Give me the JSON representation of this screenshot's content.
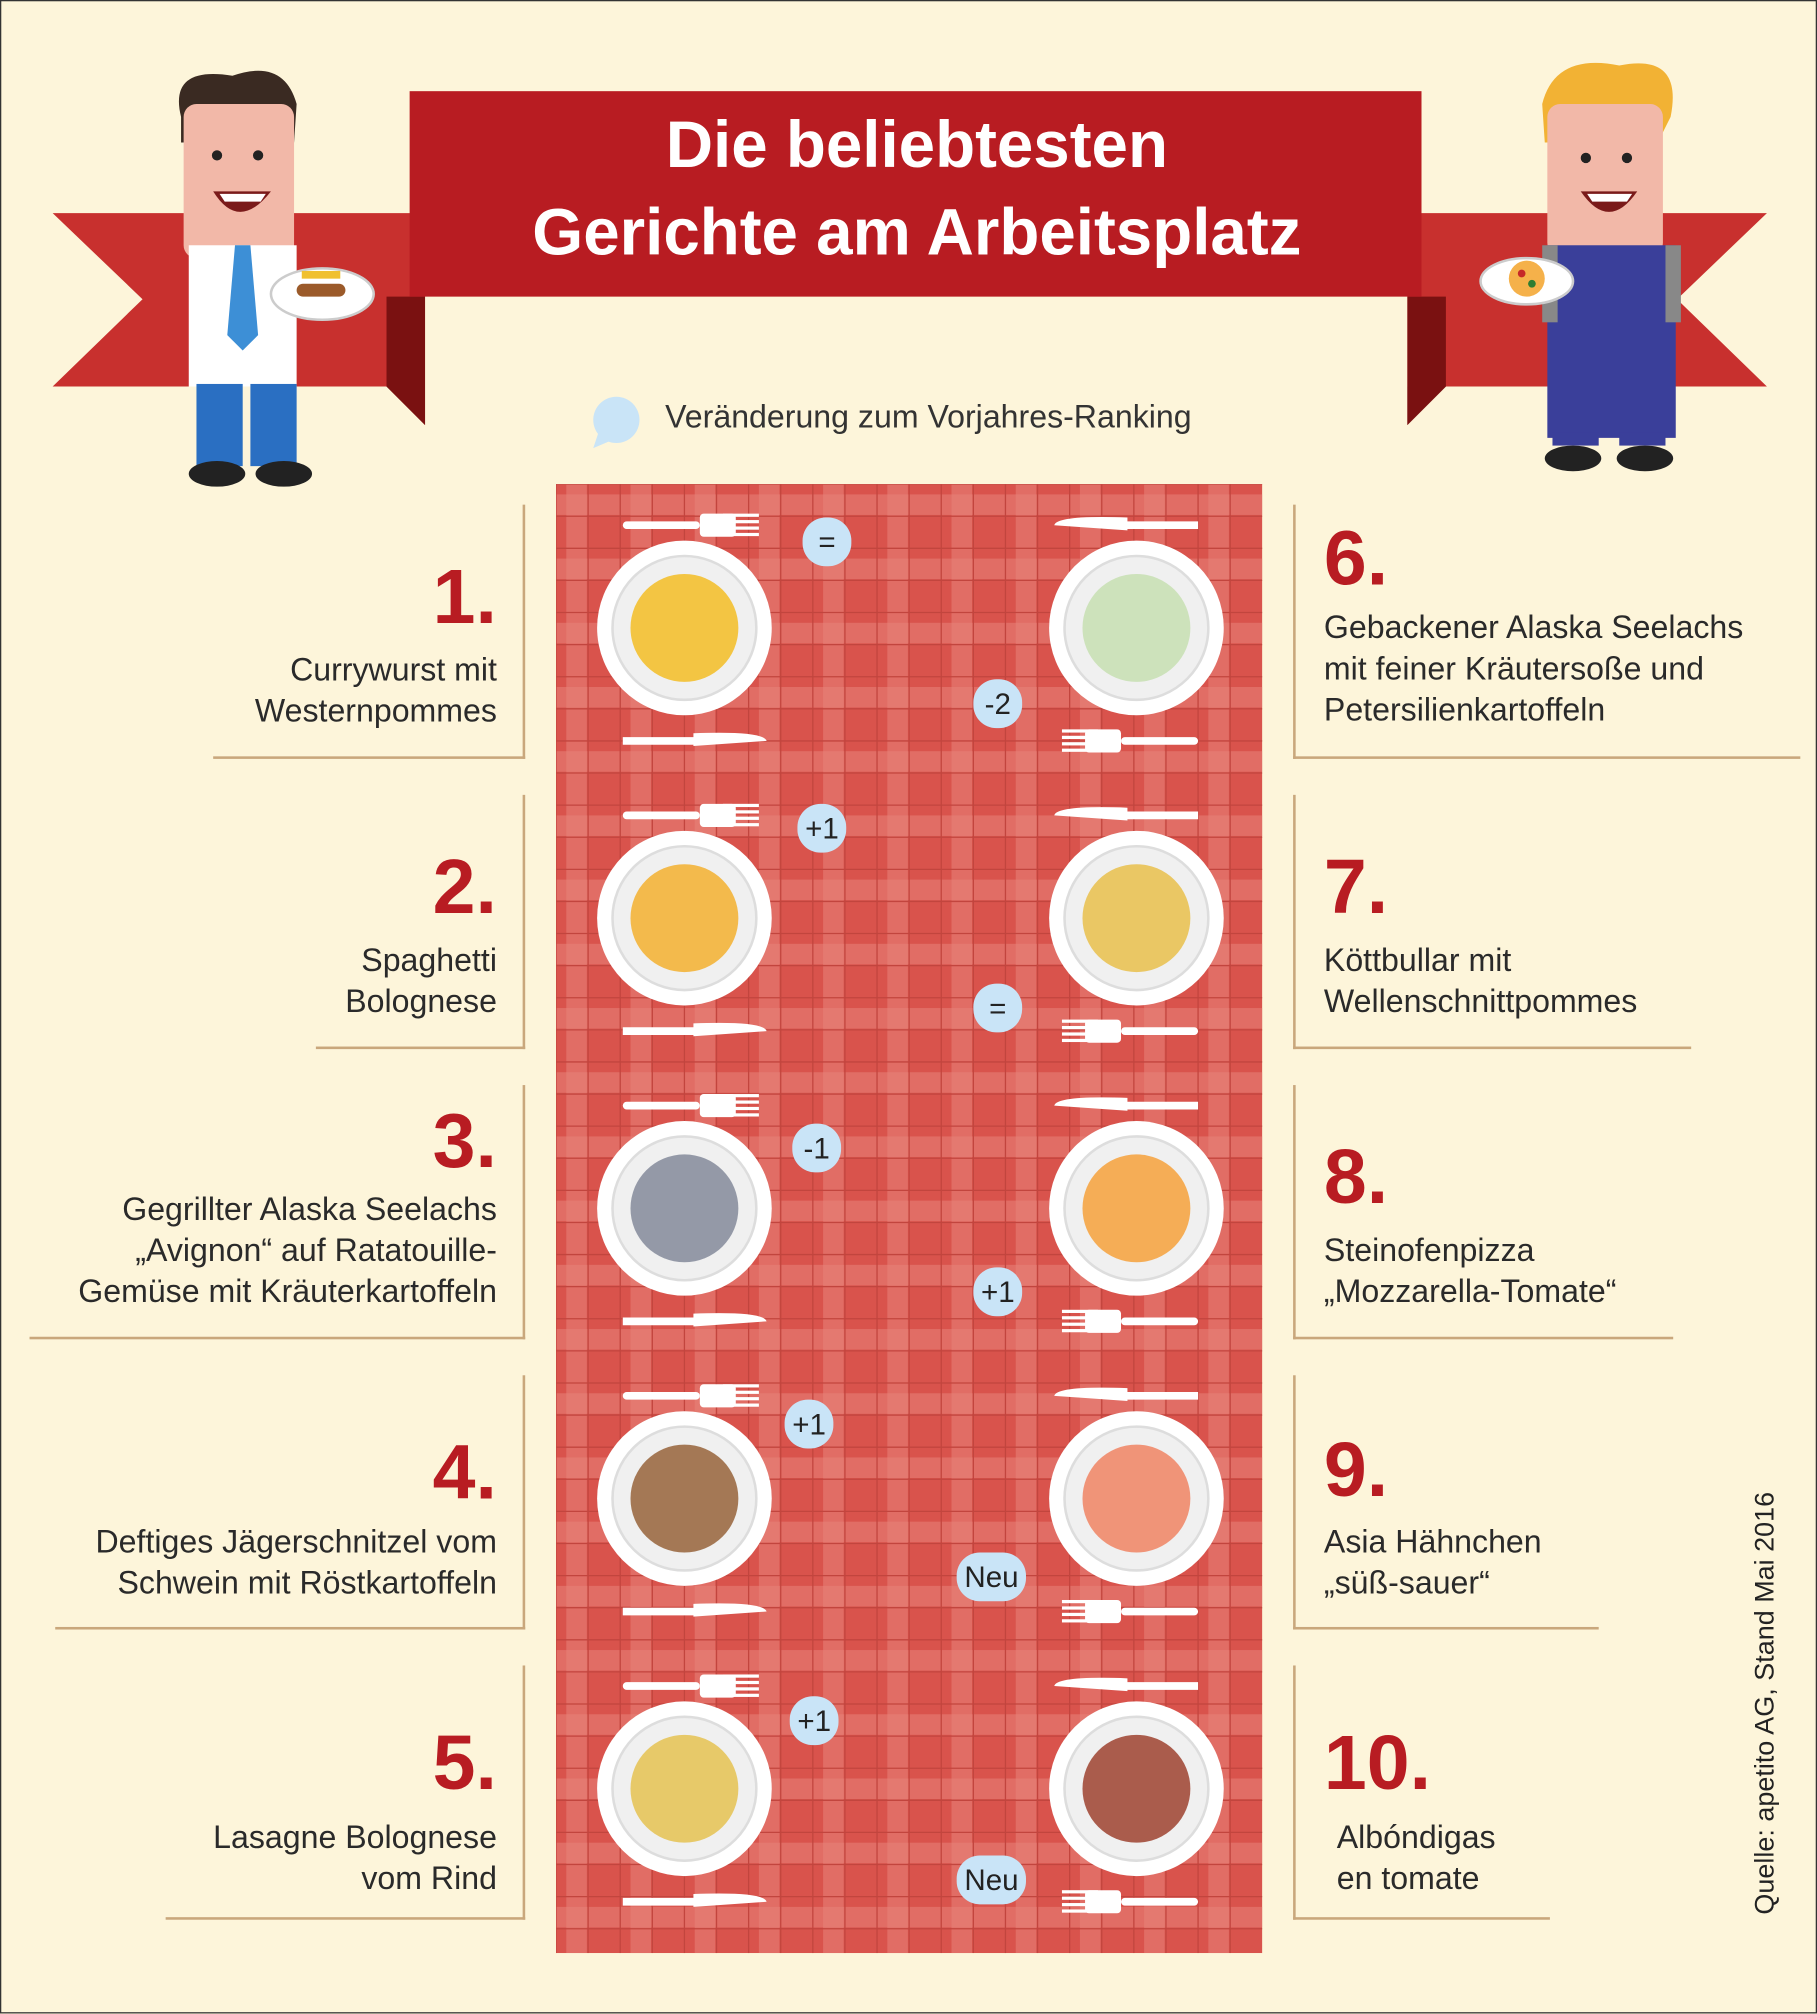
{
  "title": {
    "line1": "Die beliebtesten",
    "line2": "Gerichte am Arbeitsplatz"
  },
  "legend": {
    "text": "Veränderung zum Vorjahres-Ranking"
  },
  "ranks": [
    {
      "number": "1.",
      "lines": [
        "Currywurst mit",
        "Westernpommes"
      ],
      "change": "="
    },
    {
      "number": "2.",
      "lines": [
        "Spaghetti",
        "Bolognese"
      ],
      "change": "+1"
    },
    {
      "number": "3.",
      "lines": [
        "Gegrillter Alaska Seelachs",
        "„Avignon“ auf Ratatouille-",
        "Gemüse mit Kräuterkartoffeln"
      ],
      "change": "-1"
    },
    {
      "number": "4.",
      "lines": [
        "Deftiges Jägerschnitzel vom",
        "Schwein mit Röstkartoffeln"
      ],
      "change": "+1"
    },
    {
      "number": "5.",
      "lines": [
        "Lasagne Bolognese",
        "vom Rind"
      ],
      "change": "+1"
    },
    {
      "number": "6.",
      "lines": [
        "Gebackener Alaska Seelachs",
        "mit feiner Kräutersoße und",
        "Petersilienkartoffeln"
      ],
      "change": "-2"
    },
    {
      "number": "7.",
      "lines": [
        "Köttbullar mit",
        "Wellenschnittpommes"
      ],
      "change": "="
    },
    {
      "number": "8.",
      "lines": [
        "Steinofenpizza",
        "„Mozzarella-Tomate“"
      ],
      "change": "+1"
    },
    {
      "number": "9.",
      "lines": [
        "Asia Hähnchen",
        "„süß-sauer“"
      ],
      "change": "Neu"
    },
    {
      "number": "10.",
      "lines": [
        "Albóndigas",
        "en tomate"
      ],
      "change": "Neu"
    }
  ],
  "source": "Quelle: apetito AG, Stand Mai 2016",
  "colors": {
    "background": "#fdf5da",
    "accent_red": "#b81c22",
    "tablecloth": "#d9534c",
    "bubble": "#c9e4f7"
  }
}
